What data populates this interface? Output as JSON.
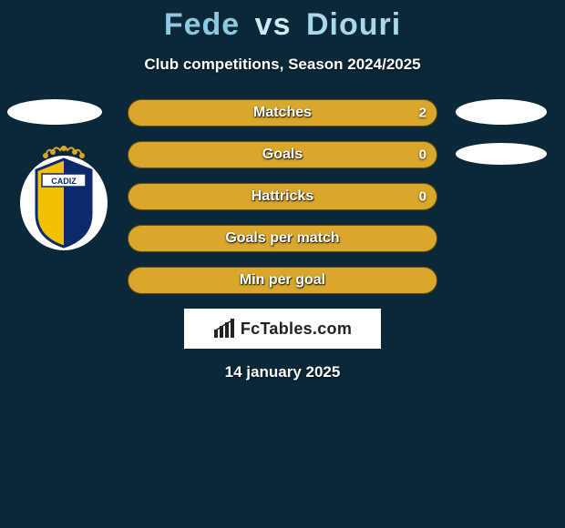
{
  "title": {
    "player1": "Fede",
    "vs": "vs",
    "player2": "Diouri"
  },
  "subtitle": "Club competitions, Season 2024/2025",
  "colors": {
    "background": "#0a2838",
    "title_p1": "#8fc9e0",
    "title_vs": "#cdeaf5",
    "title_p2": "#a9d8ea",
    "bar_left_fill": "#d8a72b",
    "bar_left_border": "#6b4f0e",
    "bar_right_fill": "#d8a72b",
    "bar_right_border": "#6b4f0e",
    "ellipse": "#ffffff",
    "text_white": "#ffffff"
  },
  "split": {
    "left_pct": 50,
    "right_pct": 50
  },
  "stats": [
    {
      "label": "Matches",
      "value": "2",
      "show_value": true
    },
    {
      "label": "Goals",
      "value": "0",
      "show_value": true
    },
    {
      "label": "Hattricks",
      "value": "0",
      "show_value": true
    },
    {
      "label": "Goals per match",
      "value": "",
      "show_value": false
    },
    {
      "label": "Min per goal",
      "value": "",
      "show_value": false
    }
  ],
  "brand": {
    "text": "FcTables.com"
  },
  "date": "14 january 2025",
  "club_left": {
    "name": "cadiz-cf-crest"
  }
}
